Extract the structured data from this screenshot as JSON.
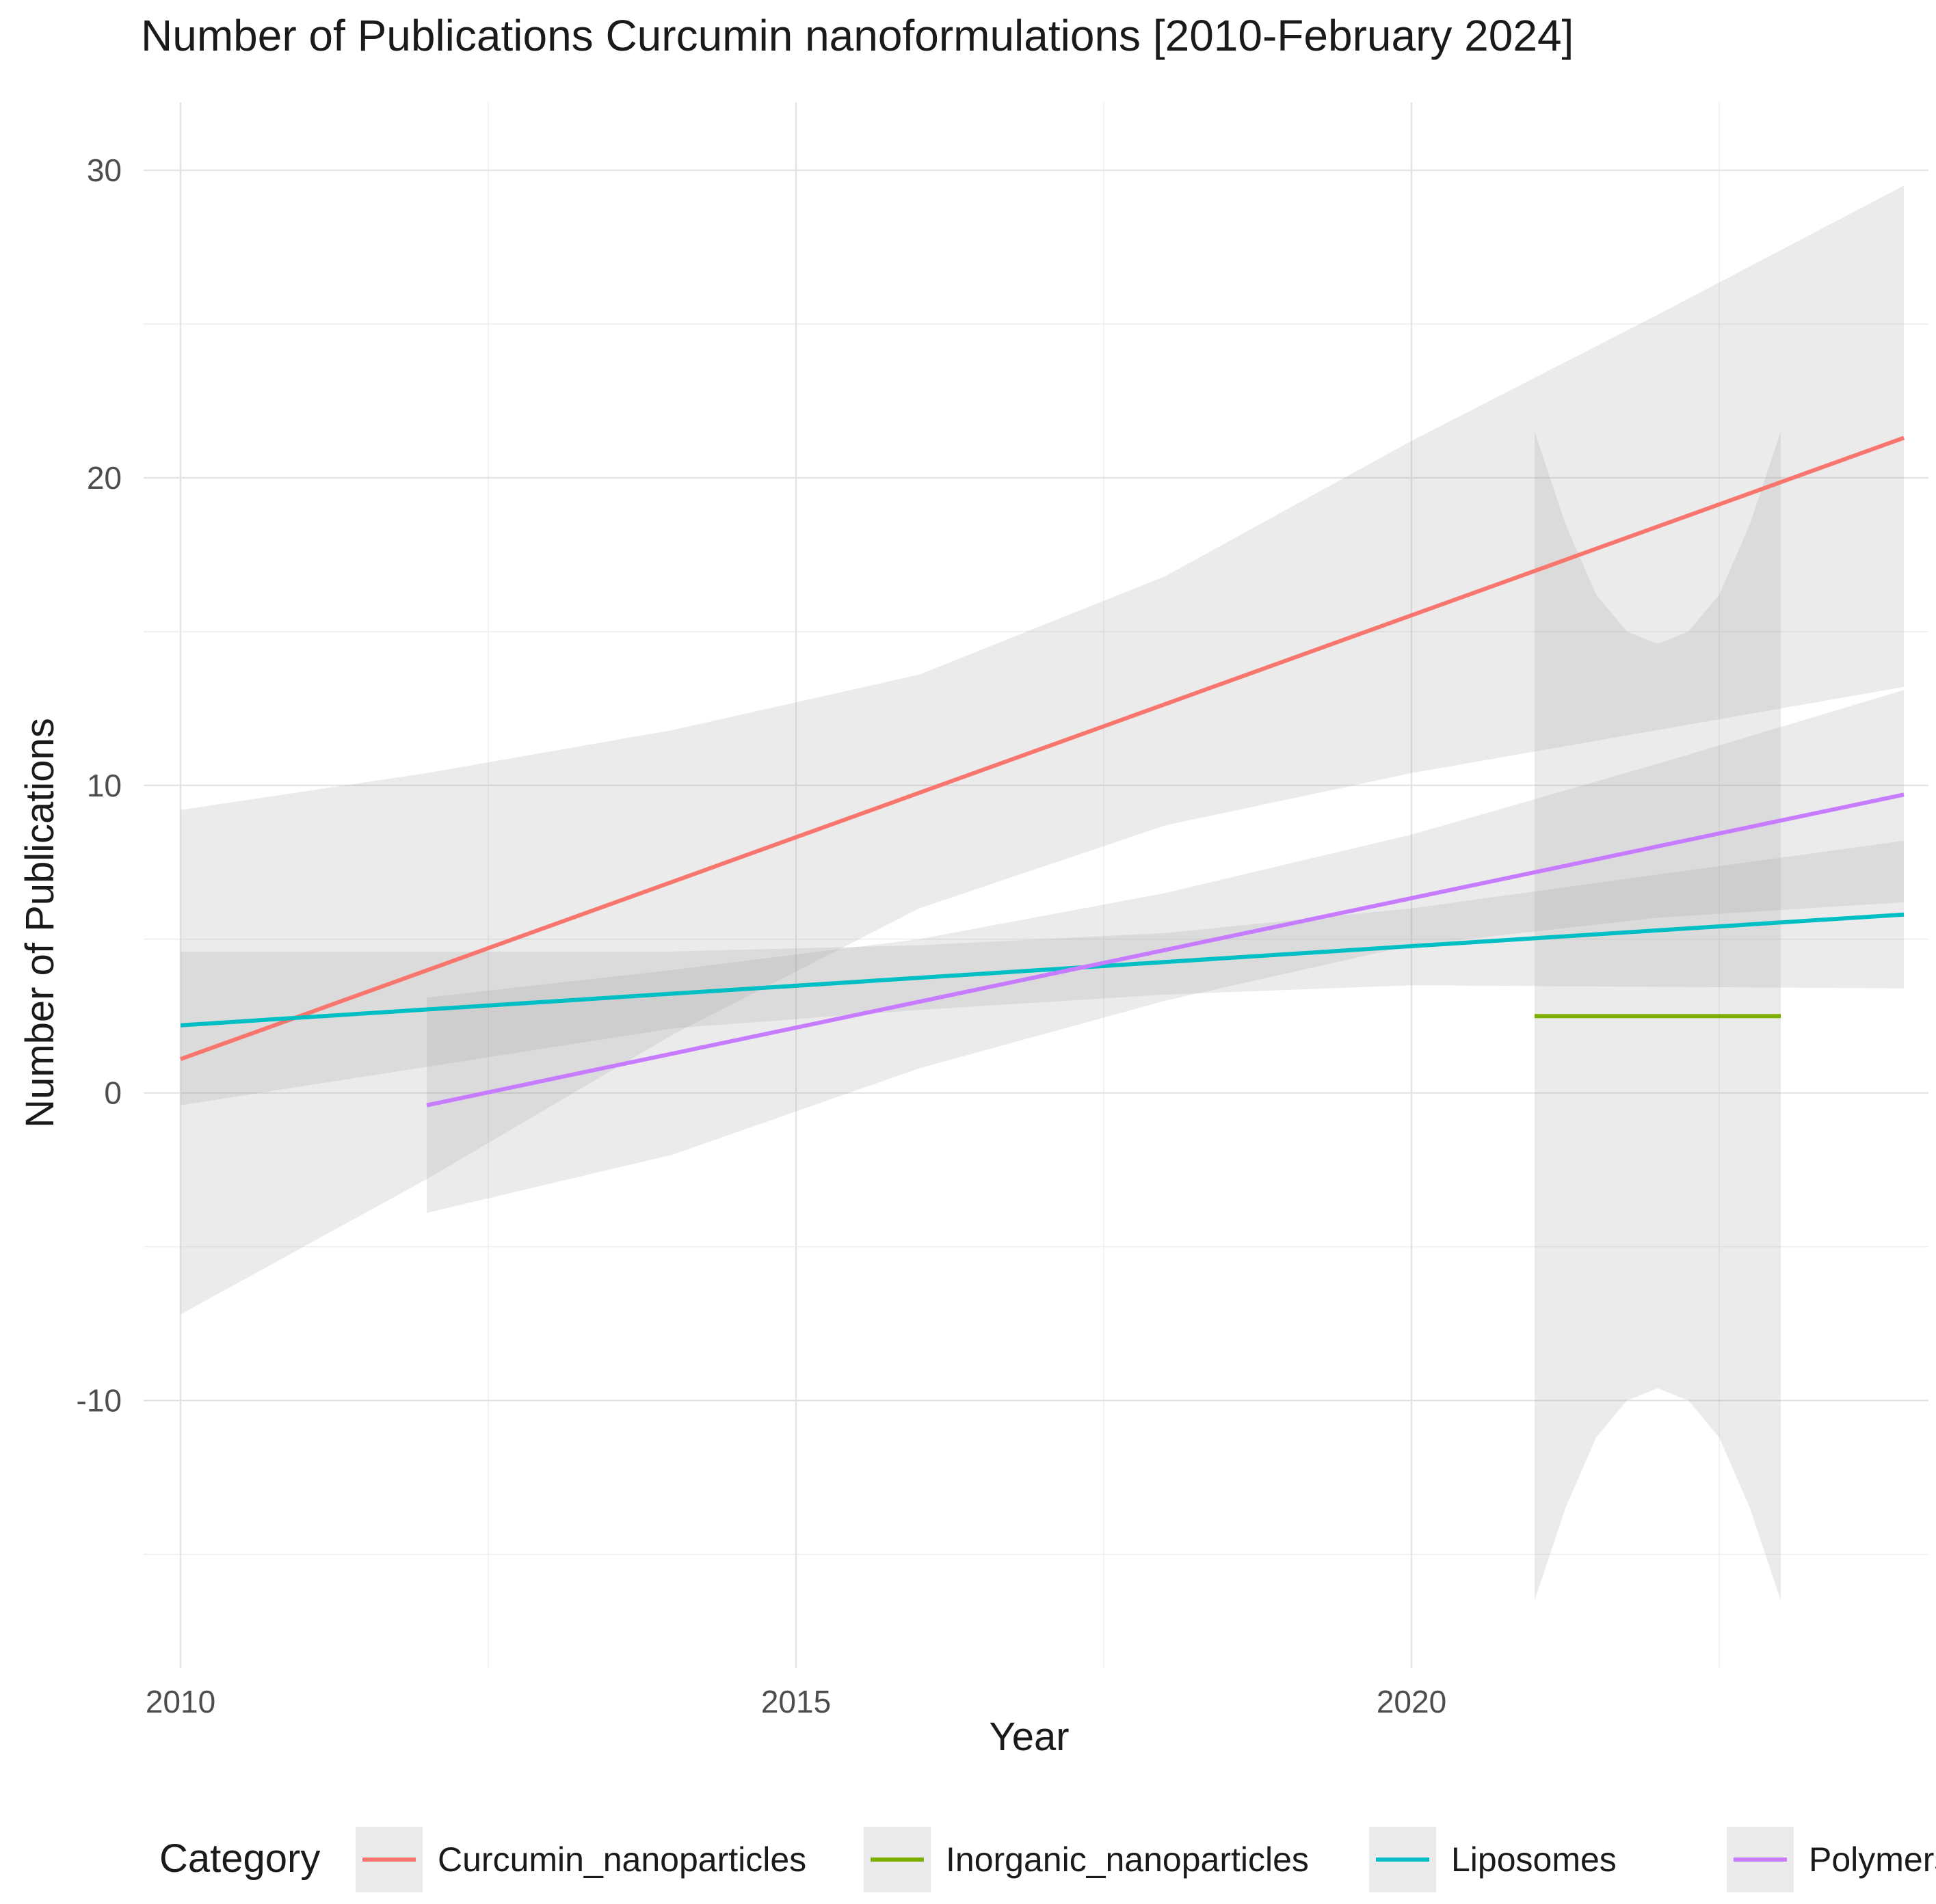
{
  "chart_data": {
    "type": "line",
    "title": "Number of Publications Curcumin nanoformulations [2010-February 2024]",
    "xlabel": "Year",
    "ylabel": "Number of Publications",
    "xlim": [
      2009.7,
      2024.2
    ],
    "ylim": [
      -18.7,
      32.2
    ],
    "x_ticks": [
      2010,
      2015,
      2020
    ],
    "y_ticks": [
      -10,
      0,
      10,
      20,
      30
    ],
    "grid": true,
    "legend": {
      "title": "Category",
      "position": "bottom"
    },
    "series": [
      {
        "name": "Curcumin_nanoparticles",
        "color": "#F8766D",
        "x": [
          2010,
          2024
        ],
        "y": [
          1.1,
          21.3
        ],
        "confidence_band": {
          "x": [
            2010,
            2012,
            2014,
            2016,
            2018,
            2020,
            2022,
            2024
          ],
          "lower": [
            -7.2,
            -2.8,
            1.9,
            6.0,
            8.7,
            10.4,
            11.8,
            13.2
          ],
          "upper": [
            9.2,
            10.4,
            11.8,
            13.6,
            16.8,
            21.2,
            25.3,
            29.5
          ]
        }
      },
      {
        "name": "Inorganic_nanoparticles",
        "color": "#7CAE00",
        "x": [
          2021,
          2023
        ],
        "y": [
          2.5,
          2.5
        ],
        "confidence_band": {
          "x": [
            2021,
            2021.25,
            2021.5,
            2021.75,
            2022,
            2022.25,
            2022.5,
            2022.75,
            2023
          ],
          "lower": [
            -16.5,
            -13.5,
            -11.2,
            -10.0,
            -9.6,
            -10.0,
            -11.2,
            -13.5,
            -16.5
          ],
          "upper": [
            21.5,
            18.5,
            16.2,
            15.0,
            14.6,
            15.0,
            16.2,
            18.5,
            21.5
          ]
        }
      },
      {
        "name": "Liposomes",
        "color": "#00BFC4",
        "x": [
          2010,
          2024
        ],
        "y": [
          2.2,
          5.8
        ],
        "confidence_band": {
          "x": [
            2010,
            2014,
            2016,
            2018,
            2020,
            2024
          ],
          "lower": [
            -0.4,
            2.1,
            2.7,
            3.2,
            3.5,
            3.4
          ],
          "upper": [
            4.6,
            4.6,
            4.8,
            5.2,
            6.0,
            8.2
          ]
        }
      },
      {
        "name": "Polymers",
        "color": "#C77CFF",
        "x": [
          2012,
          2024
        ],
        "y": [
          -0.4,
          9.7
        ],
        "confidence_band": {
          "x": [
            2012,
            2014,
            2016,
            2018,
            2020,
            2022,
            2024
          ],
          "lower": [
            -3.9,
            -2.0,
            0.8,
            3.0,
            4.8,
            5.7,
            6.2
          ],
          "upper": [
            3.1,
            4.0,
            5.0,
            6.5,
            8.4,
            10.7,
            13.1
          ]
        }
      }
    ]
  }
}
